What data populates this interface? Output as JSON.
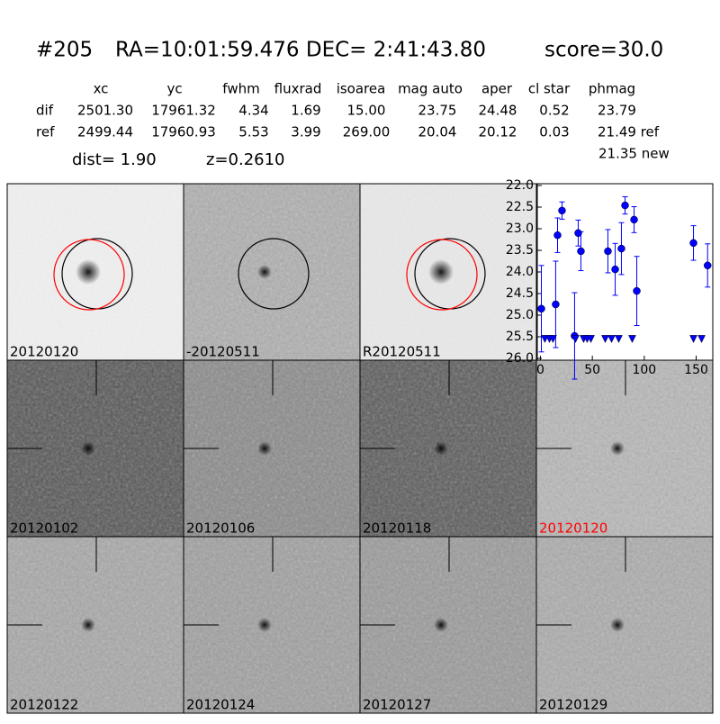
{
  "header": {
    "id": "#205",
    "coords": "RA=10:01:59.476 DEC= 2:41:43.80",
    "score": "score=30.0"
  },
  "table": {
    "columns": [
      "xc",
      "yc",
      "fwhm",
      "fluxrad",
      "isoarea",
      "mag auto",
      "aper",
      "cl star",
      "phmag"
    ],
    "rows": [
      [
        "dif",
        "2501.30",
        "17961.32",
        "4.34",
        "1.69",
        "15.00",
        "23.75",
        "24.48",
        "0.52",
        "23.79"
      ],
      [
        "ref",
        "2499.44",
        "17960.93",
        "5.53",
        "3.99",
        "269.00",
        "20.04",
        "20.12",
        "0.03",
        "21.49 ref"
      ]
    ],
    "extra": "21.35 new",
    "dist": "dist=  1.90",
    "z": "z=0.2610"
  },
  "stamps": [
    {
      "label": "20120120",
      "color": "#000000"
    },
    {
      "label": "-20120511",
      "color": "#000000"
    },
    {
      "label": "R20120511",
      "color": "#000000"
    },
    {
      "label": "20120102",
      "color": "#000000"
    },
    {
      "label": "20120106",
      "color": "#000000"
    },
    {
      "label": "20120118",
      "color": "#000000"
    },
    {
      "label": "20120120",
      "color": "#ff0000"
    },
    {
      "label": "20120122",
      "color": "#000000"
    },
    {
      "label": "20120124",
      "color": "#000000"
    },
    {
      "label": "20120127",
      "color": "#000000"
    },
    {
      "label": "20120129",
      "color": "#000000"
    }
  ],
  "chart_data": {
    "type": "scatter",
    "xlim": [
      -3,
      166
    ],
    "ylim": [
      26,
      22
    ],
    "xticks": [
      0,
      50,
      100,
      150
    ],
    "yticks": [
      {
        "value": 22,
        "label": "22.0"
      },
      {
        "value": 22.5,
        "label": "22.5"
      },
      {
        "value": 23,
        "label": "23.0"
      },
      {
        "value": 23.5,
        "label": "23.5"
      },
      {
        "value": 24,
        "label": "24.0"
      },
      {
        "value": 24.5,
        "label": "24.5"
      },
      {
        "value": 25,
        "label": "25.0"
      },
      {
        "value": 25.5,
        "label": "25.5"
      },
      {
        "value": 26,
        "label": "26.0"
      }
    ],
    "series": [
      {
        "color": "#0000ff",
        "marker": "circle",
        "x": [
          0.9,
          14.7,
          16.5,
          20.8,
          32.9,
          36.4,
          39,
          65,
          72,
          78,
          81.5,
          90.2,
          92.8,
          147.4,
          161
        ],
        "values": [
          24.85,
          24.75,
          23.15,
          22.58,
          25.48,
          23.1,
          23.52,
          23.52,
          23.94,
          23.46,
          22.46,
          22.79,
          24.44,
          23.33,
          23.85
        ],
        "errors": [
          1.0,
          1.0,
          0.4,
          0.2,
          1.0,
          0.3,
          0.45,
          0.5,
          0.6,
          0.6,
          0.2,
          0.3,
          0.8,
          0.4,
          0.5
        ]
      },
      {
        "color": "#0000ff",
        "marker": "triangle-down",
        "x": [
          4.3,
          8.7,
          12.1,
          33.8,
          41.6,
          45,
          48.6,
          62.4,
          68.5,
          75.4,
          88.4,
          147.4,
          155.2
        ],
        "values": [
          25.55,
          25.55,
          25.55,
          25.55,
          25.55,
          25.55,
          25.55,
          25.55,
          25.55,
          25.55,
          25.55,
          25.55,
          25.55
        ]
      }
    ]
  }
}
